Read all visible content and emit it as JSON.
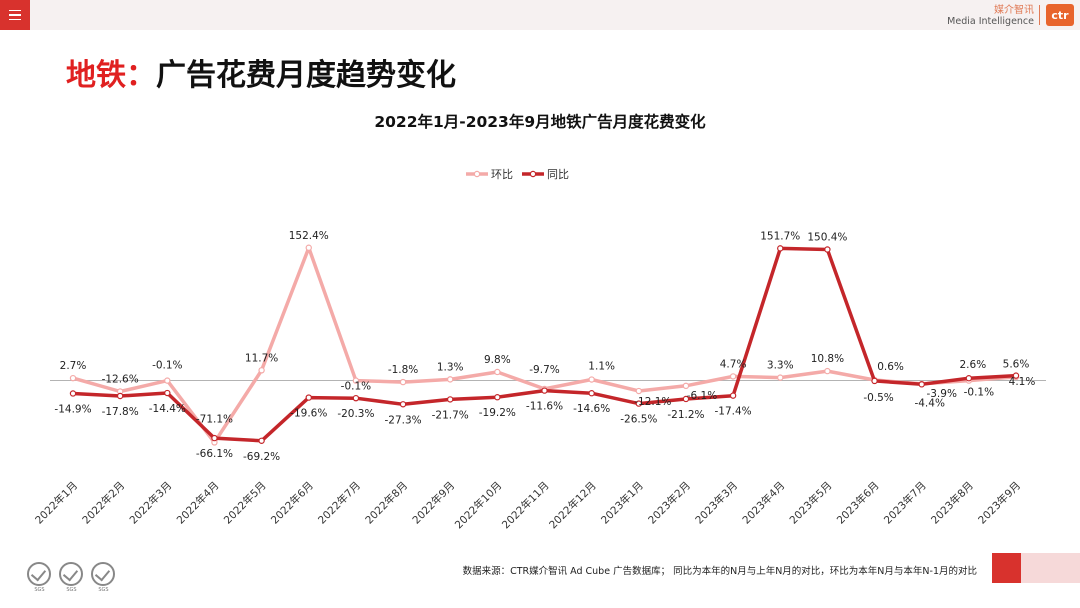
{
  "header": {
    "brand_cn": "媒介智讯",
    "brand_en": "Media Intelligence",
    "brand_logo": "ctr",
    "menu_icon": "hamburger-menu-icon"
  },
  "page": {
    "title_prefix": "地铁：",
    "title_main": "广告花费月度趋势变化"
  },
  "colors": {
    "accent_red": "#d8322d",
    "series_mom": "#f4aaa8",
    "series_yoy": "#c4262a"
  },
  "footer": {
    "source": "数据来源：CTR媒介智讯 Ad Cube 广告数据库； 同比为本年的N月与上年N月的对比，环比为本年N月与本年N-1月的对比",
    "sgs_label": "SGS"
  },
  "chart_data": {
    "type": "line",
    "title": "2022年1月-2023年9月地铁广告月度花费变化",
    "xlabel": "",
    "ylabel": "",
    "legend_position": "top-center",
    "categories": [
      "2022年1月",
      "2022年2月",
      "2022年3月",
      "2022年4月",
      "2022年5月",
      "2022年6月",
      "2022年7月",
      "2022年8月",
      "2022年9月",
      "2022年10月",
      "2022年11月",
      "2022年12月",
      "2023年1月",
      "2023年2月",
      "2023年3月",
      "2023年4月",
      "2023年5月",
      "2023年6月",
      "2023年7月",
      "2023年8月",
      "2023年9月"
    ],
    "series": [
      {
        "name": "环比",
        "values": [
          2.7,
          -12.6,
          -0.1,
          -71.1,
          11.7,
          152.4,
          -0.1,
          -1.8,
          1.3,
          9.8,
          -9.7,
          1.1,
          -12.1,
          -6.1,
          4.7,
          3.3,
          10.8,
          0.6,
          -3.9,
          -0.1,
          4.1
        ],
        "labels": [
          "2.7%",
          "-12.6%",
          "-0.1%",
          "-71.1%",
          "11.7%",
          "152.4%",
          "-0.1%",
          "-1.8%",
          "1.3%",
          "9.8%",
          "-9.7%",
          "1.1%",
          "-12.1%",
          "-6.1%",
          "4.7%",
          "3.3%",
          "10.8%",
          "0.6%",
          "-3.9%",
          "-0.1%",
          "4.1%"
        ]
      },
      {
        "name": "同比",
        "values": [
          -14.9,
          -17.8,
          -14.4,
          -66.1,
          -69.2,
          -19.6,
          -20.3,
          -27.3,
          -21.7,
          -19.2,
          -11.6,
          -14.6,
          -26.5,
          -21.2,
          -17.4,
          151.7,
          150.4,
          -0.5,
          -4.4,
          2.6,
          5.6
        ],
        "labels": [
          "-14.9%",
          "-17.8%",
          "-14.4%",
          "-66.1%",
          "-69.2%",
          "-19.6%",
          "-20.3%",
          "-27.3%",
          "-21.7%",
          "-19.2%",
          "-11.6%",
          "-14.6%",
          "-26.5%",
          "-21.2%",
          "-17.4%",
          "151.7%",
          "150.4%",
          "-0.5%",
          "-4.4%",
          "2.6%",
          "5.6%"
        ]
      }
    ],
    "ylim": [
      -80,
      160
    ],
    "grid": false
  }
}
